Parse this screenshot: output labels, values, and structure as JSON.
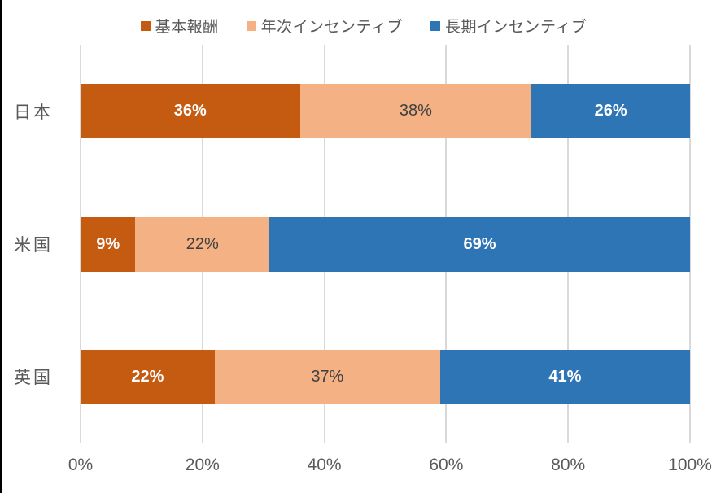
{
  "window": {
    "background": "#ffffff",
    "left_edge_border_color": "#000000"
  },
  "chart_data": {
    "type": "bar",
    "orientation": "horizontal",
    "stacked": true,
    "title": "",
    "xlabel": "",
    "ylabel": "",
    "categories": [
      "日本",
      "米国",
      "英国"
    ],
    "series": [
      {
        "name": "基本報酬",
        "color": "#c55a11",
        "label_color": "#ffffff",
        "label_bold": true,
        "values": [
          36,
          9,
          22
        ]
      },
      {
        "name": "年次インセンティブ",
        "color": "#f4b183",
        "label_color": "#404040",
        "label_bold": false,
        "values": [
          38,
          22,
          37
        ]
      },
      {
        "name": "長期インセンティブ",
        "color": "#2e75b6",
        "label_color": "#ffffff",
        "label_bold": true,
        "values": [
          26,
          69,
          41
        ]
      }
    ],
    "data_label_suffix": "%",
    "xlim": [
      0,
      100
    ],
    "x_ticks": [
      {
        "value": 0,
        "label": "0%"
      },
      {
        "value": 20,
        "label": "20%"
      },
      {
        "value": 40,
        "label": "40%"
      },
      {
        "value": 60,
        "label": "60%"
      },
      {
        "value": 80,
        "label": "80%"
      },
      {
        "value": 100,
        "label": "100%"
      }
    ],
    "grid": true,
    "gridline_color": "#d9d9d9",
    "legend_position": "top",
    "axis_text_color": "#595959"
  }
}
